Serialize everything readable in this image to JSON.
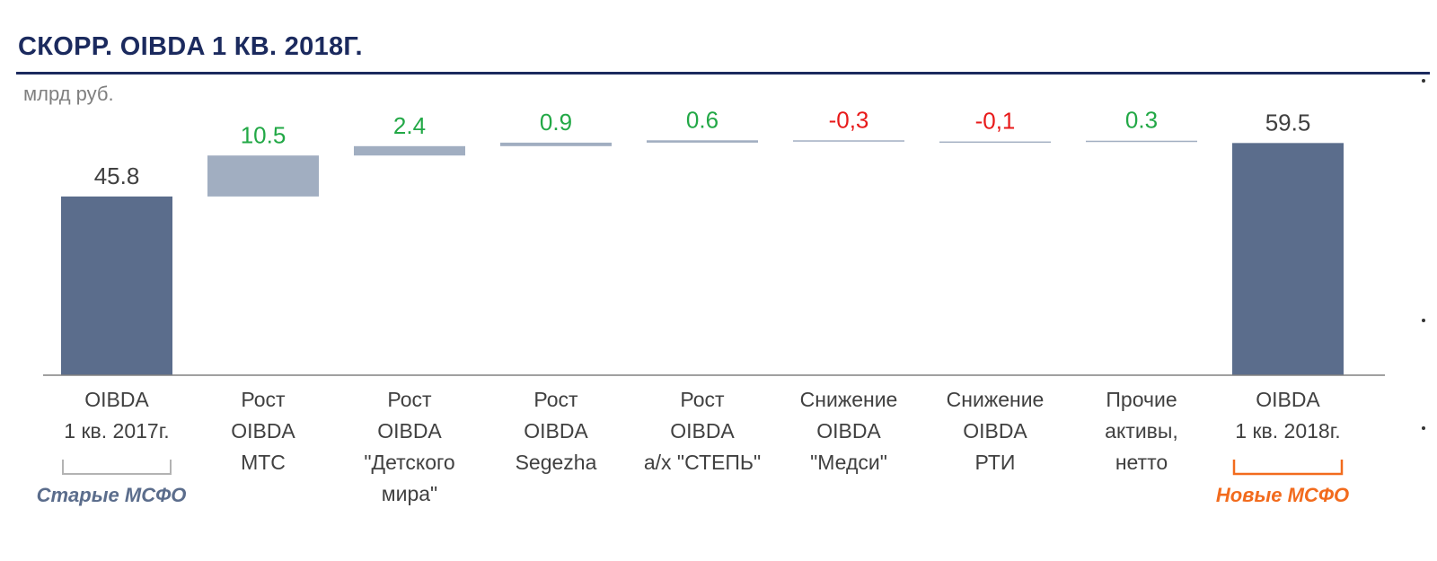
{
  "title": "СКОРР. OIBDA 1 КВ. 2018Г.",
  "unit": "млрд руб.",
  "colors": {
    "title": "#1b2a5e",
    "total_bar": "#5b6d8c",
    "delta_bar": "#a1aec1",
    "positive_label": "#22a846",
    "negative_label": "#e81a1a",
    "total_label": "#404040",
    "old_ifrs": "#5b6d8c",
    "new_ifrs": "#f26b1d",
    "axis": "#808080"
  },
  "chart_data": {
    "type": "waterfall",
    "title": "СКОРР. OIBDA 1 КВ. 2018Г.",
    "ylabel": "млрд руб.",
    "categories": [
      [
        "OIBDA",
        "1 кв. 2017г."
      ],
      [
        "Рост",
        "OIBDA",
        "МТС"
      ],
      [
        "Рост",
        "OIBDA",
        "\"Детского",
        "мира\""
      ],
      [
        "Рост",
        "OIBDA",
        "Segezha"
      ],
      [
        "Рост",
        "OIBDA",
        "а/х \"СТЕПЬ\""
      ],
      [
        "Снижение",
        "OIBDA",
        "\"Медси\""
      ],
      [
        "Снижение",
        "OIBDA",
        "РТИ"
      ],
      [
        "Прочие",
        "активы,",
        "нетто"
      ],
      [
        "OIBDA",
        "1 кв. 2018г."
      ]
    ],
    "values": [
      45.8,
      10.5,
      2.4,
      0.9,
      0.6,
      -0.3,
      -0.1,
      0.3,
      59.5
    ],
    "labels": [
      "45.8",
      "10.5",
      "2.4",
      "0.9",
      "0.6",
      "-0,3",
      "-0,1",
      "0.3",
      "59.5"
    ],
    "kinds": [
      "total",
      "delta",
      "delta",
      "delta",
      "delta",
      "delta",
      "delta",
      "delta",
      "total"
    ],
    "ylim": [
      0,
      72
    ],
    "grid": false,
    "legend": "none",
    "annotations": [
      {
        "text": "Старые МСФО",
        "bracket_under_category": 0,
        "color": "#5b6d8c"
      },
      {
        "text": "Новые МСФО",
        "bracket_under_category": 8,
        "color": "#f26b1d"
      }
    ]
  }
}
